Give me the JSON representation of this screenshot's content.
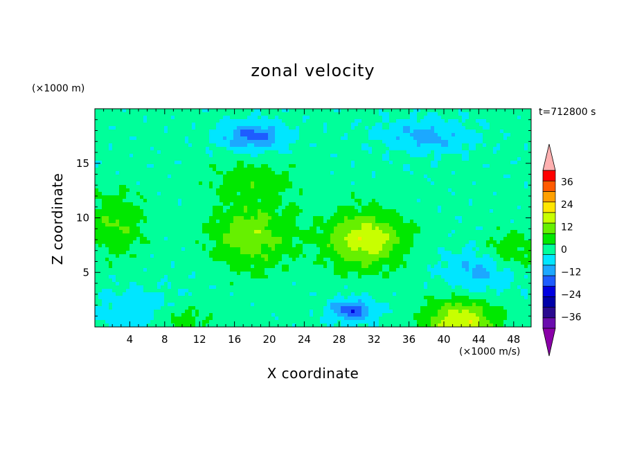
{
  "chart_data": {
    "type": "heatmap",
    "title": "zonal velocity",
    "xlabel": "X coordinate",
    "ylabel": "Z coordinate",
    "x_unit": "(×1000 m/s)",
    "y_unit": "(×1000 m)",
    "time_label": "t=712800 s",
    "xlim": [
      0,
      50
    ],
    "ylim": [
      0,
      20
    ],
    "x_ticks": [
      4,
      8,
      12,
      16,
      20,
      24,
      28,
      32,
      36,
      40,
      44,
      48
    ],
    "y_ticks": [
      5,
      10,
      15
    ],
    "colorbar": {
      "levels": [
        -42,
        -36,
        -30,
        -24,
        -18,
        -12,
        -6,
        0,
        6,
        12,
        18,
        24,
        30,
        36,
        42
      ],
      "labels": [
        -36,
        -24,
        -12,
        0,
        12,
        24,
        36
      ],
      "colors": [
        "#6a0dad",
        "#2a0a8f",
        "#0000a8",
        "#0000e0",
        "#1e5cff",
        "#1ca8ff",
        "#00e6ff",
        "#00ff9a",
        "#00e800",
        "#66f000",
        "#c8ff00",
        "#ffe600",
        "#ffa000",
        "#ff5a00",
        "#ff0000"
      ],
      "under_color": "#8a00a8",
      "over_color": "#ffb0b0",
      "extend": "both"
    },
    "features": [
      {
        "x": 2.5,
        "z": 9.5,
        "value": 10,
        "sx": 3.2,
        "sz": 3.0
      },
      {
        "x": 18,
        "z": 8.5,
        "value": 14,
        "sx": 4.5,
        "sz": 3.2
      },
      {
        "x": 31,
        "z": 8,
        "value": 20,
        "sx": 4.5,
        "sz": 2.6
      },
      {
        "x": 18,
        "z": 13.5,
        "value": 7,
        "sx": 5.0,
        "sz": 1.6
      },
      {
        "x": 47.5,
        "z": 7,
        "value": 9,
        "sx": 3.0,
        "sz": 1.8
      },
      {
        "x": 42,
        "z": 0.3,
        "value": 22,
        "sx": 4.0,
        "sz": 2.2
      },
      {
        "x": 10,
        "z": 0.6,
        "value": 9,
        "sx": 3.0,
        "sz": 1.3
      },
      {
        "x": 18,
        "z": 17.5,
        "value": -16,
        "sx": 3.5,
        "sz": 1.2
      },
      {
        "x": 38,
        "z": 17.5,
        "value": -10,
        "sx": 5.0,
        "sz": 1.5
      },
      {
        "x": 44,
        "z": 5,
        "value": -10,
        "sx": 4.0,
        "sz": 2.0
      },
      {
        "x": 29.5,
        "z": 1.5,
        "value": -18,
        "sx": 2.5,
        "sz": 1.0
      },
      {
        "x": 5,
        "z": 1.5,
        "value": -6,
        "sx": 5.0,
        "sz": 2.0
      }
    ]
  }
}
